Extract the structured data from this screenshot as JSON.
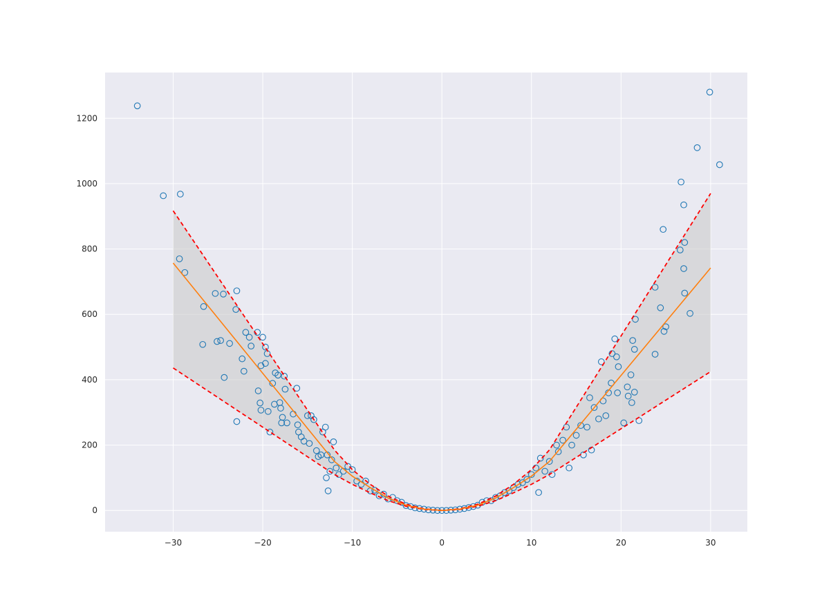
{
  "chart_data": {
    "type": "scatter",
    "title": "",
    "xlabel": "",
    "ylabel": "",
    "xlim": [
      -37.6,
      34.1
    ],
    "ylim": [
      -65,
      1340
    ],
    "xticks": [
      -30,
      -20,
      -10,
      0,
      10,
      20,
      30
    ],
    "yticks": [
      0,
      200,
      400,
      600,
      800,
      1000,
      1200
    ],
    "grid": true,
    "legend": "none",
    "colors": {
      "background": "#eaeaf2",
      "grid": "#ffffff",
      "points": "#1f77b4",
      "fit": "#ff7f0e",
      "bounds": "#ff0000",
      "band": "#c8c8c8"
    },
    "series": [
      {
        "type": "scatter",
        "marker": "open-circle",
        "points": [
          [
            -34.0,
            1238
          ],
          [
            -31.1,
            963
          ],
          [
            -29.2,
            968
          ],
          [
            -29.3,
            770
          ],
          [
            -28.7,
            728
          ],
          [
            -26.6,
            624
          ],
          [
            -26.7,
            508
          ],
          [
            -25.3,
            664
          ],
          [
            -25.1,
            517
          ],
          [
            -24.7,
            520
          ],
          [
            -24.3,
            407
          ],
          [
            -24.4,
            662
          ],
          [
            -23.7,
            511
          ],
          [
            -22.9,
            672
          ],
          [
            -23.0,
            615
          ],
          [
            -22.9,
            272
          ],
          [
            -22.3,
            464
          ],
          [
            -22.1,
            426
          ],
          [
            -21.9,
            545
          ],
          [
            -21.5,
            530
          ],
          [
            -21.3,
            503
          ],
          [
            -20.6,
            545
          ],
          [
            -20.5,
            366
          ],
          [
            -20.2,
            443
          ],
          [
            -20.3,
            329
          ],
          [
            -20.2,
            307
          ],
          [
            -20.0,
            530
          ],
          [
            -19.7,
            500
          ],
          [
            -19.7,
            450
          ],
          [
            -19.5,
            480
          ],
          [
            -19.4,
            303
          ],
          [
            -19.2,
            240
          ],
          [
            -18.9,
            389
          ],
          [
            -18.7,
            325
          ],
          [
            -18.6,
            421
          ],
          [
            -18.3,
            414
          ],
          [
            -18.1,
            330
          ],
          [
            -18.0,
            313
          ],
          [
            -17.8,
            285
          ],
          [
            -17.9,
            268
          ],
          [
            -17.6,
            411
          ],
          [
            -17.5,
            371
          ],
          [
            -17.3,
            268
          ],
          [
            -16.6,
            295
          ],
          [
            -16.2,
            374
          ],
          [
            -16.1,
            262
          ],
          [
            -16.0,
            240
          ],
          [
            -15.7,
            225
          ],
          [
            -15.4,
            212
          ],
          [
            -15.0,
            290
          ],
          [
            -14.8,
            205
          ],
          [
            -14.6,
            290
          ],
          [
            -14.3,
            278
          ],
          [
            -14.0,
            183
          ],
          [
            -13.8,
            165
          ],
          [
            -13.5,
            170
          ],
          [
            -13.3,
            240
          ],
          [
            -13.0,
            255
          ],
          [
            -12.9,
            100
          ],
          [
            -12.8,
            170
          ],
          [
            -12.7,
            60
          ],
          [
            -12.5,
            120
          ],
          [
            -12.3,
            155
          ],
          [
            -12.1,
            210
          ],
          [
            -11.8,
            130
          ],
          [
            -11.5,
            110
          ],
          [
            -11.0,
            120
          ],
          [
            -10.5,
            135
          ],
          [
            -10.0,
            125
          ],
          [
            -9.5,
            90
          ],
          [
            -9.0,
            80
          ],
          [
            -8.5,
            90
          ],
          [
            -8.0,
            60
          ],
          [
            -7.5,
            62
          ],
          [
            -7.0,
            45
          ],
          [
            -6.5,
            50
          ],
          [
            -6.0,
            35
          ],
          [
            -5.5,
            40
          ],
          [
            -5.0,
            30
          ],
          [
            -4.5,
            25
          ],
          [
            -4.0,
            15
          ],
          [
            -3.5,
            12
          ],
          [
            -3.0,
            8
          ],
          [
            -2.5,
            6
          ],
          [
            -2.0,
            4
          ],
          [
            -1.5,
            2
          ],
          [
            -1.0,
            1
          ],
          [
            -0.5,
            0
          ],
          [
            0.0,
            0
          ],
          [
            0.5,
            0
          ],
          [
            1.0,
            1
          ],
          [
            1.5,
            2
          ],
          [
            2.0,
            4
          ],
          [
            2.5,
            6
          ],
          [
            3.0,
            9
          ],
          [
            3.5,
            12
          ],
          [
            4.0,
            16
          ],
          [
            4.5,
            25
          ],
          [
            5.0,
            30
          ],
          [
            5.5,
            30
          ],
          [
            6.0,
            40
          ],
          [
            6.5,
            45
          ],
          [
            7.0,
            55
          ],
          [
            7.5,
            60
          ],
          [
            8.0,
            70
          ],
          [
            8.5,
            80
          ],
          [
            9.0,
            85
          ],
          [
            9.5,
            95
          ],
          [
            10.0,
            110
          ],
          [
            10.5,
            130
          ],
          [
            10.8,
            55
          ],
          [
            11.0,
            160
          ],
          [
            11.5,
            120
          ],
          [
            12.0,
            150
          ],
          [
            12.3,
            110
          ],
          [
            12.8,
            200
          ],
          [
            13.0,
            180
          ],
          [
            13.5,
            215
          ],
          [
            13.9,
            255
          ],
          [
            14.2,
            130
          ],
          [
            14.5,
            200
          ],
          [
            15.0,
            230
          ],
          [
            15.5,
            260
          ],
          [
            15.8,
            170
          ],
          [
            16.2,
            255
          ],
          [
            16.5,
            345
          ],
          [
            16.7,
            185
          ],
          [
            17.0,
            315
          ],
          [
            17.5,
            280
          ],
          [
            17.8,
            455
          ],
          [
            18.0,
            335
          ],
          [
            18.3,
            290
          ],
          [
            18.6,
            360
          ],
          [
            18.9,
            390
          ],
          [
            19.0,
            480
          ],
          [
            19.3,
            525
          ],
          [
            19.5,
            470
          ],
          [
            19.7,
            440
          ],
          [
            19.6,
            360
          ],
          [
            20.3,
            268
          ],
          [
            20.7,
            378
          ],
          [
            20.8,
            350
          ],
          [
            21.1,
            415
          ],
          [
            21.2,
            330
          ],
          [
            21.3,
            520
          ],
          [
            21.5,
            493
          ],
          [
            21.5,
            362
          ],
          [
            21.6,
            585
          ],
          [
            22.0,
            275
          ],
          [
            23.8,
            478
          ],
          [
            23.8,
            683
          ],
          [
            24.4,
            620
          ],
          [
            24.8,
            548
          ],
          [
            24.7,
            860
          ],
          [
            25.0,
            562
          ],
          [
            26.6,
            797
          ],
          [
            26.7,
            1005
          ],
          [
            27.0,
            935
          ],
          [
            27.0,
            740
          ],
          [
            27.1,
            820
          ],
          [
            27.1,
            665
          ],
          [
            27.7,
            603
          ],
          [
            28.5,
            1110
          ],
          [
            29.9,
            1280
          ],
          [
            31.0,
            1058
          ]
        ]
      },
      {
        "type": "line",
        "style": "solid",
        "x": [
          -30,
          -12,
          -10,
          -8,
          -6,
          -4,
          -2,
          0,
          2,
          4,
          6,
          8,
          10,
          12,
          30
        ],
        "y": [
          757,
          150,
          105,
          70,
          38,
          16,
          4,
          0,
          4,
          16,
          38,
          70,
          105,
          150,
          742
        ]
      },
      {
        "type": "line",
        "style": "dashed",
        "x": [
          -30,
          -12,
          -10,
          -8,
          -6,
          -4,
          -2,
          0,
          2,
          4,
          6,
          8,
          10,
          12,
          30
        ],
        "y": [
          917,
          185,
          125,
          80,
          44,
          19,
          5,
          0,
          5,
          19,
          44,
          80,
          125,
          185,
          970
        ]
      },
      {
        "type": "line",
        "style": "dashed",
        "x": [
          -30,
          -12,
          -10,
          -8,
          -6,
          -4,
          -2,
          0,
          2,
          4,
          6,
          8,
          10,
          12,
          30
        ],
        "y": [
          436,
          110,
          80,
          54,
          30,
          13,
          3,
          0,
          3,
          13,
          30,
          54,
          80,
          110,
          425
        ]
      }
    ]
  }
}
